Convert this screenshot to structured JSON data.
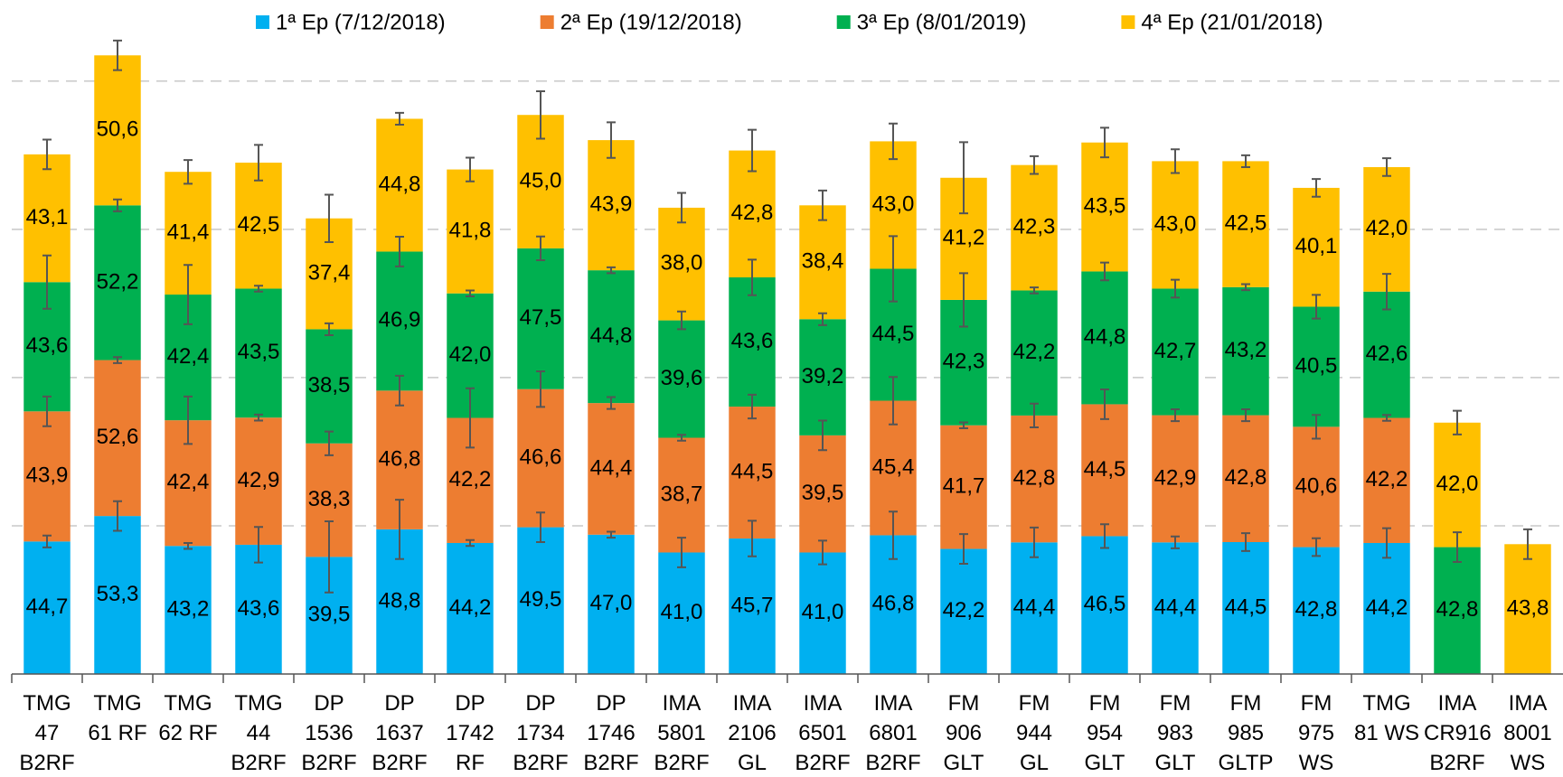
{
  "chart_data": {
    "type": "stacked_bar",
    "categories": [
      "TMG 47 B2RF",
      "TMG 61 RF",
      "TMG 62 RF",
      "TMG 44 B2RF",
      "DP 1536 B2RF",
      "DP 1637 B2RF",
      "DP 1742 RF",
      "DP 1734 B2RF",
      "DP 1746 B2RF",
      "IMA 5801 B2RF",
      "IMA 2106 GL",
      "IMA 6501 B2RF",
      "IMA 6801 B2RF",
      "FM 906 GLT",
      "FM 944 GL",
      "FM 954 GLT",
      "FM 983 GLT",
      "FM 985 GLTP",
      "FM 975 WS",
      "TMG 81 WS",
      "IMA CR916 B2RF",
      "IMA 8001 WS"
    ],
    "series": [
      {
        "name": "1ª Ep (7/12/2018)",
        "color": "#00b0f0",
        "values": [
          44.7,
          53.3,
          43.2,
          43.6,
          39.5,
          48.8,
          44.2,
          49.5,
          47.0,
          41.0,
          45.7,
          41.0,
          46.8,
          42.2,
          44.4,
          46.5,
          44.4,
          44.5,
          42.8,
          44.2,
          null,
          null
        ],
        "value_labels": [
          "44,7",
          "53,3",
          "43,2",
          "43,6",
          "39,5",
          "48,8",
          "44,2",
          "49,5",
          "47,0",
          "41,0",
          "45,7",
          "41,0",
          "46,8",
          "42,2",
          "44,4",
          "46,5",
          "44,4",
          "44,5",
          "42,8",
          "44,2",
          null,
          null
        ],
        "errors": [
          2,
          5,
          1,
          6,
          12,
          10,
          1,
          5,
          1,
          5,
          6,
          4,
          8,
          5,
          5,
          4,
          2,
          3,
          3,
          5,
          null,
          null
        ]
      },
      {
        "name": "2ª Ep (19/12/2018)",
        "color": "#ed7d31",
        "values": [
          43.9,
          52.6,
          42.4,
          42.9,
          38.3,
          46.8,
          42.2,
          46.6,
          44.4,
          38.7,
          44.5,
          39.5,
          45.4,
          41.7,
          42.8,
          44.5,
          42.9,
          42.8,
          40.6,
          42.2,
          null,
          null
        ],
        "value_labels": [
          "43,9",
          "52,6",
          "42,4",
          "42,9",
          "38,3",
          "46,8",
          "42,2",
          "46,6",
          "44,4",
          "38,7",
          "44,5",
          "39,5",
          "45,4",
          "41,7",
          "42,8",
          "44,5",
          "42,9",
          "42,8",
          "40,6",
          "42,2",
          null,
          null
        ],
        "errors": [
          5,
          1,
          8,
          1,
          4,
          5,
          10,
          6,
          2,
          1,
          4,
          5,
          8,
          1,
          4,
          5,
          2,
          2,
          4,
          1,
          null,
          null
        ]
      },
      {
        "name": "3ª Ep (8/01/2019)",
        "color": "#00b050",
        "values": [
          43.6,
          52.2,
          42.4,
          43.5,
          38.5,
          46.9,
          42.0,
          47.5,
          44.8,
          39.6,
          43.6,
          39.2,
          44.5,
          42.3,
          42.2,
          44.8,
          42.7,
          43.2,
          40.5,
          42.6,
          42.8,
          null
        ],
        "value_labels": [
          "43,6",
          "52,2",
          "42,4",
          "43,5",
          "38,5",
          "46,9",
          "42,0",
          "47,5",
          "44,8",
          "39,6",
          "43,6",
          "39,2",
          "44,5",
          "42,3",
          "42,2",
          "44,8",
          "42,7",
          "43,2",
          "40,5",
          "42,6",
          "42,8",
          null
        ],
        "errors": [
          9,
          2,
          10,
          1,
          2,
          5,
          1,
          4,
          1,
          3,
          6,
          2,
          11,
          9,
          1,
          3,
          3,
          1,
          4,
          6,
          5,
          null
        ]
      },
      {
        "name": "4ª Ep (21/01/2018)",
        "color": "#ffc000",
        "values": [
          43.1,
          50.6,
          41.4,
          42.5,
          37.4,
          44.8,
          41.8,
          45.0,
          43.9,
          38.0,
          42.8,
          38.4,
          43.0,
          41.2,
          42.3,
          43.5,
          43.0,
          42.5,
          40.1,
          42.0,
          42.0,
          43.8
        ],
        "value_labels": [
          "43,1",
          "50,6",
          "41,4",
          "42,5",
          "37,4",
          "44,8",
          "41,8",
          "45,0",
          "43,9",
          "38,0",
          "42,8",
          "38,4",
          "43,0",
          "41,2",
          "42,3",
          "43,5",
          "43,0",
          "42,5",
          "40,1",
          "42,0",
          "42,0",
          "43,8"
        ],
        "errors": [
          5,
          5,
          4,
          6,
          8,
          2,
          4,
          8,
          6,
          5,
          7,
          5,
          6,
          12,
          3,
          5,
          4,
          2,
          3,
          3,
          4,
          5
        ]
      }
    ],
    "ylim": [
      10,
      220
    ],
    "yticks": [
      60,
      110,
      160,
      210
    ],
    "grid": true
  }
}
